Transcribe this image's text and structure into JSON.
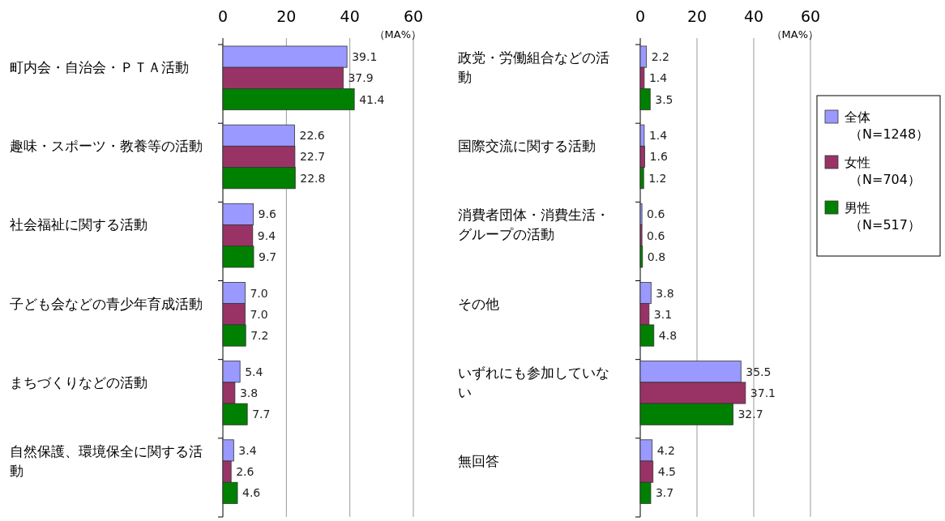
{
  "chart_data": [
    {
      "type": "bar",
      "orientation": "horizontal",
      "categories": [
        "町内会・自治会・ＰＴＡ活動",
        "趣味・スポーツ・教養等の活動",
        "社会福祉に関する活動",
        "子ども会などの青少年育成活動",
        "まちづくりなどの活動",
        "自然保護、環境保全に関する活動"
      ],
      "series": [
        {
          "color": "#9999ff",
          "values": [
            39.1,
            22.6,
            9.6,
            7.0,
            5.4,
            3.4
          ],
          "value_labels": [
            "39.1",
            "22.6",
            "9.6",
            "7.0",
            "5.4",
            "3.4"
          ]
        },
        {
          "color": "#993366",
          "values": [
            37.9,
            22.7,
            9.4,
            7.0,
            3.8,
            2.6
          ],
          "value_labels": [
            "37.9",
            "22.7",
            "9.4",
            "7.0",
            "3.8",
            "2.6"
          ]
        },
        {
          "color": "#008000",
          "values": [
            41.4,
            22.8,
            9.7,
            7.2,
            7.7,
            4.6
          ],
          "value_labels": [
            "41.4",
            "22.8",
            "9.7",
            "7.2",
            "7.7",
            "4.6"
          ]
        }
      ],
      "xlim": [
        0,
        60
      ],
      "xticks": [
        0,
        20,
        40,
        60
      ],
      "grid": "x",
      "annotations": [
        "（MA%）"
      ]
    },
    {
      "type": "bar",
      "orientation": "horizontal",
      "categories": [
        "政党・労働組合などの活動",
        "国際交流に関する活動",
        "消費者団体・消費生活・グループの活動",
        "その他",
        "いずれにも参加していない",
        "無回答"
      ],
      "series": [
        {
          "name": "全体（N=1248）",
          "color": "#9999ff",
          "values": [
            2.2,
            1.4,
            0.6,
            3.8,
            35.5,
            4.2
          ]
        },
        {
          "name": "女性（N=704）",
          "color": "#993366",
          "values": [
            1.4,
            1.6,
            0.6,
            3.1,
            37.1,
            4.5
          ]
        },
        {
          "name": "男性（N=517）",
          "color": "#008000",
          "values": [
            3.5,
            1.2,
            0.8,
            4.8,
            32.7,
            3.7
          ]
        }
      ],
      "xlim": [
        0,
        60
      ],
      "xticks": [
        0,
        20,
        40,
        60
      ],
      "grid": "x",
      "data_labels": true,
      "legend": "right",
      "annotations": [
        "（MA%）"
      ]
    }
  ]
}
